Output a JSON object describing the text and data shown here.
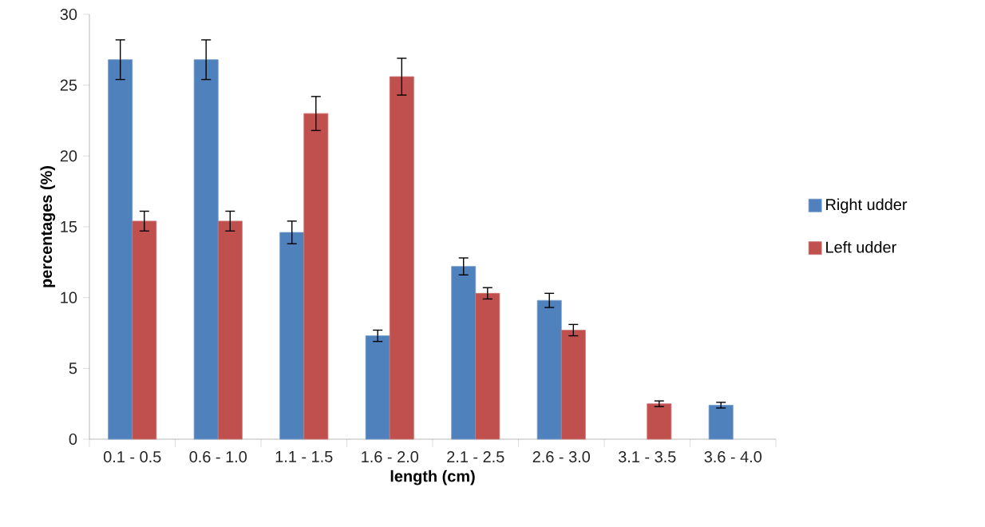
{
  "chart_data": {
    "type": "bar",
    "xlabel": "length (cm)",
    "ylabel": "percentages (%)",
    "categories": [
      "0.1 - 0.5",
      "0.6 - 1.0",
      "1.1 - 1.5",
      "1.6 - 2.0",
      "2.1 - 2.5",
      "2.6 - 3.0",
      "3.1 - 3.5",
      "3.6 - 4.0"
    ],
    "series": [
      {
        "name": "Right udder",
        "color": "#4f81bd",
        "values": [
          26.8,
          26.8,
          14.6,
          7.3,
          12.2,
          9.8,
          null,
          2.4
        ],
        "errors": [
          1.4,
          1.4,
          0.8,
          0.4,
          0.6,
          0.5,
          null,
          0.2
        ]
      },
      {
        "name": "Left udder",
        "color": "#c0504d",
        "values": [
          15.4,
          15.4,
          23.0,
          25.6,
          10.3,
          7.7,
          2.5,
          null
        ],
        "errors": [
          0.7,
          0.7,
          1.2,
          1.3,
          0.4,
          0.4,
          0.2,
          null
        ]
      }
    ],
    "ylim": [
      0,
      30
    ],
    "yticks": [
      0,
      5,
      10,
      15,
      20,
      25,
      30
    ],
    "grid": false,
    "legend": "right"
  }
}
